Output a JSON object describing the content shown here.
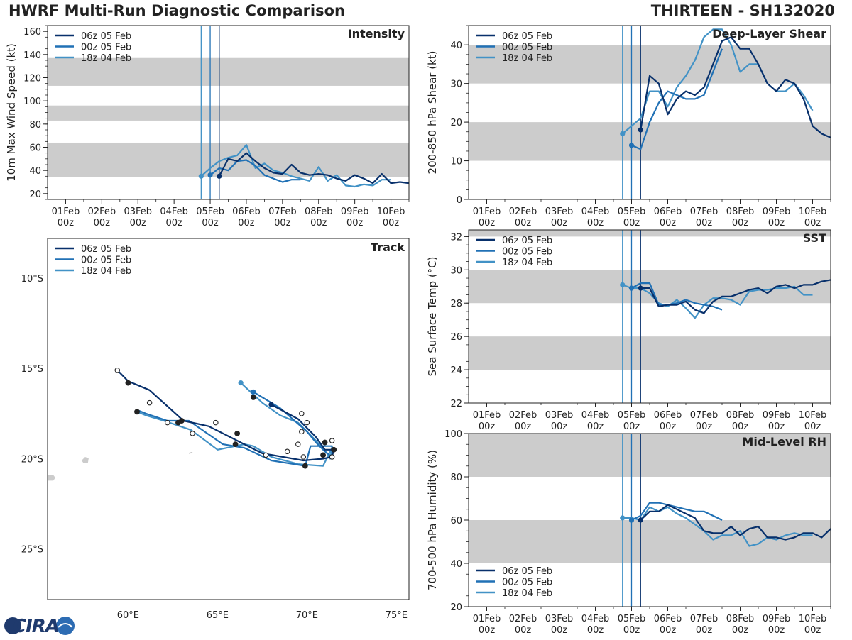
{
  "header": {
    "title": "HWRF Multi-Run Diagnostic Comparison",
    "storm_id": "THIRTEEN - SH132020"
  },
  "logo": {
    "text": "CIRA"
  },
  "colors": {
    "run1": "#08306b",
    "run2": "#2171b5",
    "run3": "#4292c6",
    "band": "#cccccc",
    "axis": "#222222"
  },
  "runs": [
    "06z 05 Feb",
    "00z 05 Feb",
    "18z 04 Feb"
  ],
  "time_axis": {
    "range": [
      -0.5,
      9.5
    ],
    "ticks": [
      0,
      1,
      2,
      3,
      4,
      5,
      6,
      7,
      8,
      9
    ],
    "tick_labels_top": [
      "01Feb",
      "02Feb",
      "03Feb",
      "04Feb",
      "05Feb",
      "06Feb",
      "07Feb",
      "08Feb",
      "09Feb",
      "10Feb"
    ],
    "tick_labels_bottom": [
      "00z",
      "00z",
      "00z",
      "00z",
      "00z",
      "00z",
      "00z",
      "00z",
      "00z",
      "00z"
    ],
    "init_times": [
      4.25,
      4.0,
      3.75
    ]
  },
  "chart_data": [
    {
      "id": "intensity",
      "type": "line",
      "title": "Intensity",
      "ylabel": "10m Max Wind Speed (kt)",
      "ylim": [
        15,
        165
      ],
      "yticks": [
        20,
        40,
        60,
        80,
        100,
        120,
        140,
        160
      ],
      "bands": [
        [
          34,
          64
        ],
        [
          83,
          96
        ],
        [
          113,
          137
        ]
      ],
      "legend_position": "top-left",
      "series": [
        {
          "name": "06z 05 Feb",
          "x": [
            4.25,
            4.5,
            4.75,
            5.0,
            5.25,
            5.5,
            5.75,
            6.0,
            6.25,
            6.5,
            6.75,
            7.0,
            7.25,
            7.5,
            7.75,
            8.0,
            8.25,
            8.5,
            8.75,
            9.0,
            9.25,
            9.5
          ],
          "y": [
            35,
            50,
            48,
            55,
            48,
            42,
            38,
            37,
            45,
            38,
            36,
            37,
            36,
            33,
            31,
            36,
            33,
            29,
            37,
            29,
            30,
            29
          ]
        },
        {
          "name": "00z 05 Feb",
          "x": [
            4.0,
            4.25,
            4.5,
            4.75,
            5.0,
            5.25,
            5.5,
            5.75,
            6.0,
            6.25,
            6.5
          ],
          "y": [
            36,
            42,
            40,
            48,
            49,
            44,
            36,
            33,
            30,
            32,
            32
          ]
        },
        {
          "name": "18z 04 Feb",
          "x": [
            3.75,
            4.0,
            4.25,
            4.5,
            4.75,
            5.0,
            5.25,
            5.5,
            5.75,
            6.0,
            6.25,
            6.5,
            6.75,
            7.0,
            7.25,
            7.5,
            7.75,
            8.0,
            8.25,
            8.5,
            8.75,
            9.0
          ],
          "y": [
            35,
            42,
            48,
            51,
            53,
            62,
            42,
            46,
            40,
            38,
            35,
            33,
            31,
            43,
            31,
            36,
            27,
            26,
            28,
            27,
            32,
            32
          ]
        }
      ]
    },
    {
      "id": "shear",
      "type": "line",
      "title": "Deep-Layer Shear",
      "ylabel": "200-850 hPa Shear (kt)",
      "ylim": [
        0,
        45
      ],
      "yticks": [
        0,
        10,
        20,
        30,
        40
      ],
      "bands": [
        [
          10,
          20
        ],
        [
          30,
          40
        ]
      ],
      "legend_position": "top-left",
      "series": [
        {
          "name": "06z 05 Feb",
          "x": [
            4.25,
            4.5,
            4.75,
            5.0,
            5.25,
            5.5,
            5.75,
            6.0,
            6.25,
            6.5,
            6.75,
            7.0,
            7.25,
            7.5,
            7.75,
            8.0,
            8.25,
            8.5,
            8.75,
            9.0,
            9.25,
            9.5
          ],
          "y": [
            18,
            32,
            30,
            22,
            26,
            28,
            27,
            29,
            35,
            41,
            42,
            39,
            39,
            35,
            30,
            28,
            31,
            30,
            26,
            19,
            17,
            16
          ]
        },
        {
          "name": "00z 05 Feb",
          "x": [
            4.0,
            4.25,
            4.5,
            4.75,
            5.0,
            5.25,
            5.5,
            5.75,
            6.0,
            6.25,
            6.5
          ],
          "y": [
            14,
            13,
            20,
            25,
            28,
            27,
            26,
            26,
            27,
            33,
            39
          ]
        },
        {
          "name": "18z 04 Feb",
          "x": [
            3.75,
            4.0,
            4.25,
            4.5,
            4.75,
            5.0,
            5.25,
            5.5,
            5.75,
            6.0,
            6.25,
            6.5,
            6.75,
            7.0,
            7.25,
            7.5,
            7.75,
            8.0,
            8.25,
            8.5,
            8.75,
            9.0
          ],
          "y": [
            17,
            19,
            21,
            28,
            28,
            24,
            29,
            32,
            36,
            42,
            44,
            44,
            40,
            33,
            35,
            35,
            30,
            28,
            28,
            30,
            27,
            23
          ]
        }
      ]
    },
    {
      "id": "sst",
      "type": "line",
      "title": "SST",
      "ylabel": "Sea Surface Temp (°C)",
      "ylim": [
        22,
        32.4
      ],
      "yticks": [
        22,
        24,
        26,
        28,
        30,
        32
      ],
      "bands": [
        [
          24,
          26
        ],
        [
          28,
          30
        ],
        [
          32,
          34
        ]
      ],
      "legend_position": "top-left",
      "series": [
        {
          "name": "06z 05 Feb",
          "x": [
            4.25,
            4.5,
            4.75,
            5.0,
            5.25,
            5.5,
            5.75,
            6.0,
            6.25,
            6.5,
            6.75,
            7.0,
            7.25,
            7.5,
            7.75,
            8.0,
            8.25,
            8.5,
            8.75,
            9.0,
            9.25,
            9.5
          ],
          "y": [
            28.9,
            28.9,
            27.8,
            27.9,
            27.9,
            28.1,
            27.6,
            27.4,
            28.1,
            28.4,
            28.4,
            28.6,
            28.8,
            28.9,
            28.6,
            29.0,
            29.1,
            28.9,
            29.1,
            29.1,
            29.3,
            29.4
          ]
        },
        {
          "name": "00z 05 Feb",
          "x": [
            4.0,
            4.25,
            4.5,
            4.75,
            5.0,
            5.25,
            5.5,
            5.75,
            6.0,
            6.25,
            6.5
          ],
          "y": [
            28.9,
            29.2,
            29.2,
            27.9,
            27.9,
            28.0,
            28.2,
            28.0,
            27.9,
            27.8,
            27.6
          ]
        },
        {
          "name": "18z 04 Feb",
          "x": [
            3.75,
            4.0,
            4.25,
            4.5,
            4.75,
            5.0,
            5.25,
            5.5,
            5.75,
            6.0,
            6.25,
            6.5,
            6.75,
            7.0,
            7.25,
            7.5,
            7.75,
            8.0,
            8.25,
            8.5,
            8.75,
            9.0
          ],
          "y": [
            29.1,
            28.9,
            28.9,
            28.6,
            28.0,
            27.8,
            28.2,
            27.7,
            27.1,
            27.9,
            28.3,
            28.3,
            28.2,
            27.9,
            28.7,
            28.8,
            28.8,
            28.9,
            28.9,
            29.0,
            28.5,
            28.5
          ]
        }
      ]
    },
    {
      "id": "rh",
      "type": "line",
      "title": "Mid-Level RH",
      "ylabel": "700-500 hPa Humidity (%)",
      "ylim": [
        20,
        100
      ],
      "yticks": [
        20,
        40,
        60,
        80,
        100
      ],
      "bands": [
        [
          40,
          60
        ],
        [
          80,
          100
        ]
      ],
      "legend_position": "bottom-left",
      "series": [
        {
          "name": "06z 05 Feb",
          "x": [
            4.25,
            4.5,
            4.75,
            5.0,
            5.25,
            5.5,
            5.75,
            6.0,
            6.25,
            6.5,
            6.75,
            7.0,
            7.25,
            7.5,
            7.75,
            8.0,
            8.25,
            8.5,
            8.75,
            9.0,
            9.25,
            9.5
          ],
          "y": [
            60,
            64,
            64,
            67,
            65,
            63,
            61,
            55,
            54,
            54,
            57,
            53,
            56,
            57,
            52,
            52,
            51,
            52,
            54,
            54,
            52,
            56
          ]
        },
        {
          "name": "00z 05 Feb",
          "x": [
            4.0,
            4.25,
            4.5,
            4.75,
            5.0,
            5.25,
            5.5,
            5.75,
            6.0,
            6.25,
            6.5
          ],
          "y": [
            60,
            62,
            68,
            68,
            67,
            66,
            65,
            64,
            64,
            62,
            60
          ]
        },
        {
          "name": "18z 04 Feb",
          "x": [
            3.75,
            4.0,
            4.25,
            4.5,
            4.75,
            5.0,
            5.25,
            5.5,
            5.75,
            6.0,
            6.25,
            6.5,
            6.75,
            7.0,
            7.25,
            7.5,
            7.75,
            8.0,
            8.25,
            8.5,
            8.75,
            9.0
          ],
          "y": [
            61,
            61,
            60,
            66,
            64,
            66,
            63,
            61,
            58,
            55,
            51,
            53,
            53,
            55,
            48,
            49,
            52,
            51,
            53,
            54,
            53,
            53
          ]
        }
      ]
    },
    {
      "id": "track",
      "type": "scatter",
      "title": "Track",
      "legend_position": "top-left",
      "xlim": [
        55.5,
        75.7
      ],
      "ylim": [
        -27.8,
        -7.8
      ],
      "xticks": [
        60,
        65,
        70,
        75
      ],
      "xtick_labels": [
        "60°E",
        "65°E",
        "70°E",
        "75°E"
      ],
      "yticks": [
        -10,
        -15,
        -20,
        -25
      ],
      "ytick_labels": [
        "10°S",
        "15°S",
        "20°S",
        "25°S"
      ],
      "series": [
        {
          "name": "06z 05 Feb",
          "lon": [
            68.0,
            69.5,
            70.5,
            71.0,
            71.5,
            71.4,
            70.9,
            69.8,
            67.5,
            66.3,
            65.5,
            64.5,
            63.1,
            61.2,
            60.0,
            59.5
          ],
          "lat": [
            -17.0,
            -17.8,
            -18.8,
            -19.5,
            -19.5,
            -19.9,
            -20.0,
            -20.1,
            -19.7,
            -19.1,
            -18.7,
            -18.2,
            -17.9,
            -16.2,
            -15.7,
            -15.2
          ],
          "markers": [
            {
              "lon": 68.0,
              "lat": -17.0,
              "filled": true
            },
            {
              "lon": 71.5,
              "lat": -19.5,
              "filled": true
            },
            {
              "lon": 70.9,
              "lat": -19.8,
              "filled": true
            },
            {
              "lon": 66.1,
              "lat": -18.6,
              "filled": true
            },
            {
              "lon": 63.0,
              "lat": -17.9,
              "filled": true
            },
            {
              "lon": 60.0,
              "lat": -15.8,
              "filled": true
            },
            {
              "lon": 69.8,
              "lat": -19.9,
              "filled": false
            },
            {
              "lon": 59.4,
              "lat": -15.1,
              "filled": false
            }
          ]
        },
        {
          "name": "00z 05 Feb",
          "lon": [
            67.0,
            68.5,
            70.0,
            70.5,
            71.0,
            71.4,
            71.4,
            70.2,
            69.9,
            68.0,
            66.5,
            65.3,
            63.4,
            62.2,
            61.0,
            60.5
          ],
          "lat": [
            -16.3,
            -17.2,
            -18.5,
            -19.1,
            -19.6,
            -19.9,
            -19.3,
            -19.3,
            -20.4,
            -20.1,
            -19.4,
            -19.2,
            -17.9,
            -17.9,
            -17.5,
            -17.3
          ],
          "markers": [
            {
              "lon": 67.0,
              "lat": -16.3,
              "filled": true
            },
            {
              "lon": 67.0,
              "lat": -16.6,
              "filled": true
            },
            {
              "lon": 71.0,
              "lat": -19.1,
              "filled": true
            },
            {
              "lon": 69.9,
              "lat": -20.4,
              "filled": true
            },
            {
              "lon": 66.0,
              "lat": -19.2,
              "filled": true
            },
            {
              "lon": 62.8,
              "lat": -18.0,
              "filled": true
            },
            {
              "lon": 60.5,
              "lat": -17.4,
              "filled": true
            },
            {
              "lon": 70.0,
              "lat": -18.0,
              "filled": false
            },
            {
              "lon": 71.4,
              "lat": -19.0,
              "filled": false
            },
            {
              "lon": 64.9,
              "lat": -18.0,
              "filled": false
            }
          ]
        },
        {
          "name": "18z 04 Feb",
          "lon": [
            66.3,
            67.5,
            68.5,
            69.5,
            70.5,
            71.2,
            71.3,
            71.4,
            70.9,
            69.5,
            68.0,
            67.0,
            66.5,
            65.0,
            63.5,
            62.0,
            61.0,
            60.5
          ],
          "lat": [
            -15.8,
            -16.9,
            -17.6,
            -18.0,
            -19.0,
            -19.8,
            -20.0,
            -19.4,
            -20.4,
            -20.3,
            -19.9,
            -19.3,
            -19.2,
            -19.5,
            -18.4,
            -17.9,
            -17.6,
            -17.4
          ],
          "markers": [
            {
              "lon": 66.3,
              "lat": -15.8,
              "filled": true
            },
            {
              "lon": 69.7,
              "lat": -17.5,
              "filled": false
            },
            {
              "lon": 69.7,
              "lat": -18.5,
              "filled": false
            },
            {
              "lon": 71.4,
              "lat": -19.9,
              "filled": false
            },
            {
              "lon": 69.5,
              "lat": -19.2,
              "filled": false
            },
            {
              "lon": 68.9,
              "lat": -19.6,
              "filled": false
            },
            {
              "lon": 67.7,
              "lat": -19.8,
              "filled": false
            },
            {
              "lon": 61.2,
              "lat": -16.9,
              "filled": false
            },
            {
              "lon": 63.6,
              "lat": -18.6,
              "filled": false
            },
            {
              "lon": 62.2,
              "lat": -18.0,
              "filled": false
            }
          ]
        }
      ]
    }
  ]
}
